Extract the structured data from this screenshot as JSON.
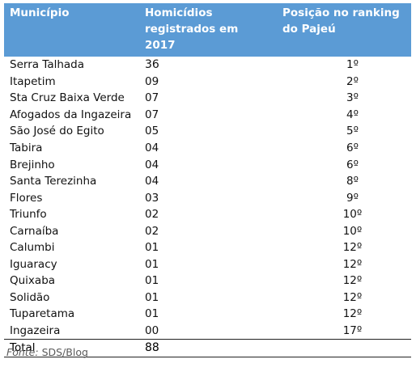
{
  "table": {
    "headers": [
      "Município",
      "Homicídios registrados em 2017",
      "Posição no ranking do Pajeú"
    ],
    "rows": [
      [
        "Serra Talhada",
        "36",
        "1º"
      ],
      [
        "Itapetim",
        "09",
        "2º"
      ],
      [
        "Sta Cruz Baixa Verde",
        "07",
        "3º"
      ],
      [
        "Afogados da Ingazeira",
        "07",
        "4º"
      ],
      [
        "São José do Egito",
        "05",
        "5º"
      ],
      [
        "Tabira",
        "04",
        "6º"
      ],
      [
        "Brejinho",
        "04",
        "6º"
      ],
      [
        "Santa Terezinha",
        "04",
        "8º"
      ],
      [
        "Flores",
        "03",
        "9º"
      ],
      [
        "Triunfo",
        "02",
        "10º"
      ],
      [
        "Carnaíba",
        "02",
        "10º"
      ],
      [
        "Calumbi",
        "01",
        "12º"
      ],
      [
        "Iguaracy",
        "01",
        "12º"
      ],
      [
        "Quixaba",
        "01",
        "12º"
      ],
      [
        "Solidão",
        "01",
        "12º"
      ],
      [
        "Tuparetama",
        "01",
        "12º"
      ],
      [
        "Ingazeira",
        "00",
        "17º"
      ]
    ],
    "total_label": "Total",
    "total_value": "88"
  },
  "source": {
    "label": "Fonte:",
    "text": "SDS/Blog"
  },
  "colors": {
    "header_bg": "#5b9bd5",
    "header_text": "#ffffff"
  }
}
